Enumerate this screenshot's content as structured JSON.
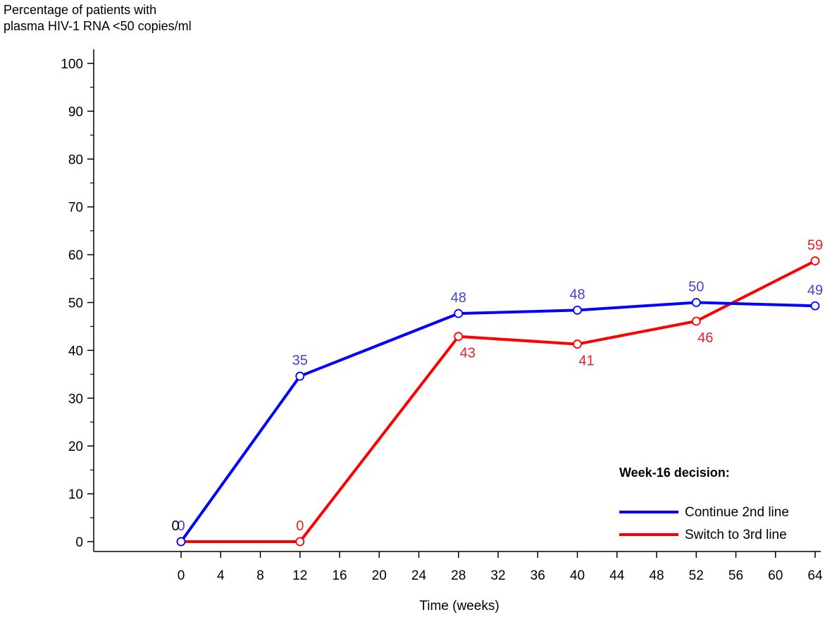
{
  "chart_data": {
    "type": "line",
    "ylabel": [
      "Percentage of patients with",
      "plasma HIV-1 RNA <50 copies/ml"
    ],
    "xlabel": "Time (weeks)",
    "xlim": [
      0,
      64
    ],
    "ylim": [
      0,
      100
    ],
    "xticks": [
      0,
      4,
      8,
      12,
      16,
      20,
      24,
      28,
      32,
      36,
      40,
      44,
      48,
      52,
      56,
      60,
      64
    ],
    "yticks": [
      0,
      10,
      20,
      30,
      40,
      50,
      60,
      70,
      80,
      90,
      100
    ],
    "legend": {
      "title": "Week-16 decision:",
      "placement": "bottom-right"
    },
    "series": [
      {
        "name": "Continue 2nd line",
        "color": "#0000ff",
        "label_color": "#4444cc",
        "x": [
          0,
          12,
          28,
          40,
          52,
          64
        ],
        "y": [
          0,
          34.6,
          47.7,
          48.4,
          50.0,
          49.3
        ],
        "labels": [
          "0",
          "35",
          "48",
          "48",
          "50",
          "49"
        ],
        "label_pos": [
          "above",
          "above",
          "above",
          "above",
          "above",
          "above"
        ]
      },
      {
        "name": "Switch to 3rd line",
        "color": "#ff0000",
        "label_color": "#e8202a",
        "x": [
          0,
          12,
          28,
          40,
          52,
          64
        ],
        "y": [
          0,
          0,
          42.9,
          41.3,
          46.1,
          58.7
        ],
        "labels": [
          "",
          "0",
          "43",
          "41",
          "46",
          "59"
        ],
        "label_pos": [
          "above",
          "above",
          "below",
          "below",
          "below",
          "above"
        ]
      }
    ],
    "zero_label": {
      "text": "0",
      "color": "#000000"
    }
  }
}
